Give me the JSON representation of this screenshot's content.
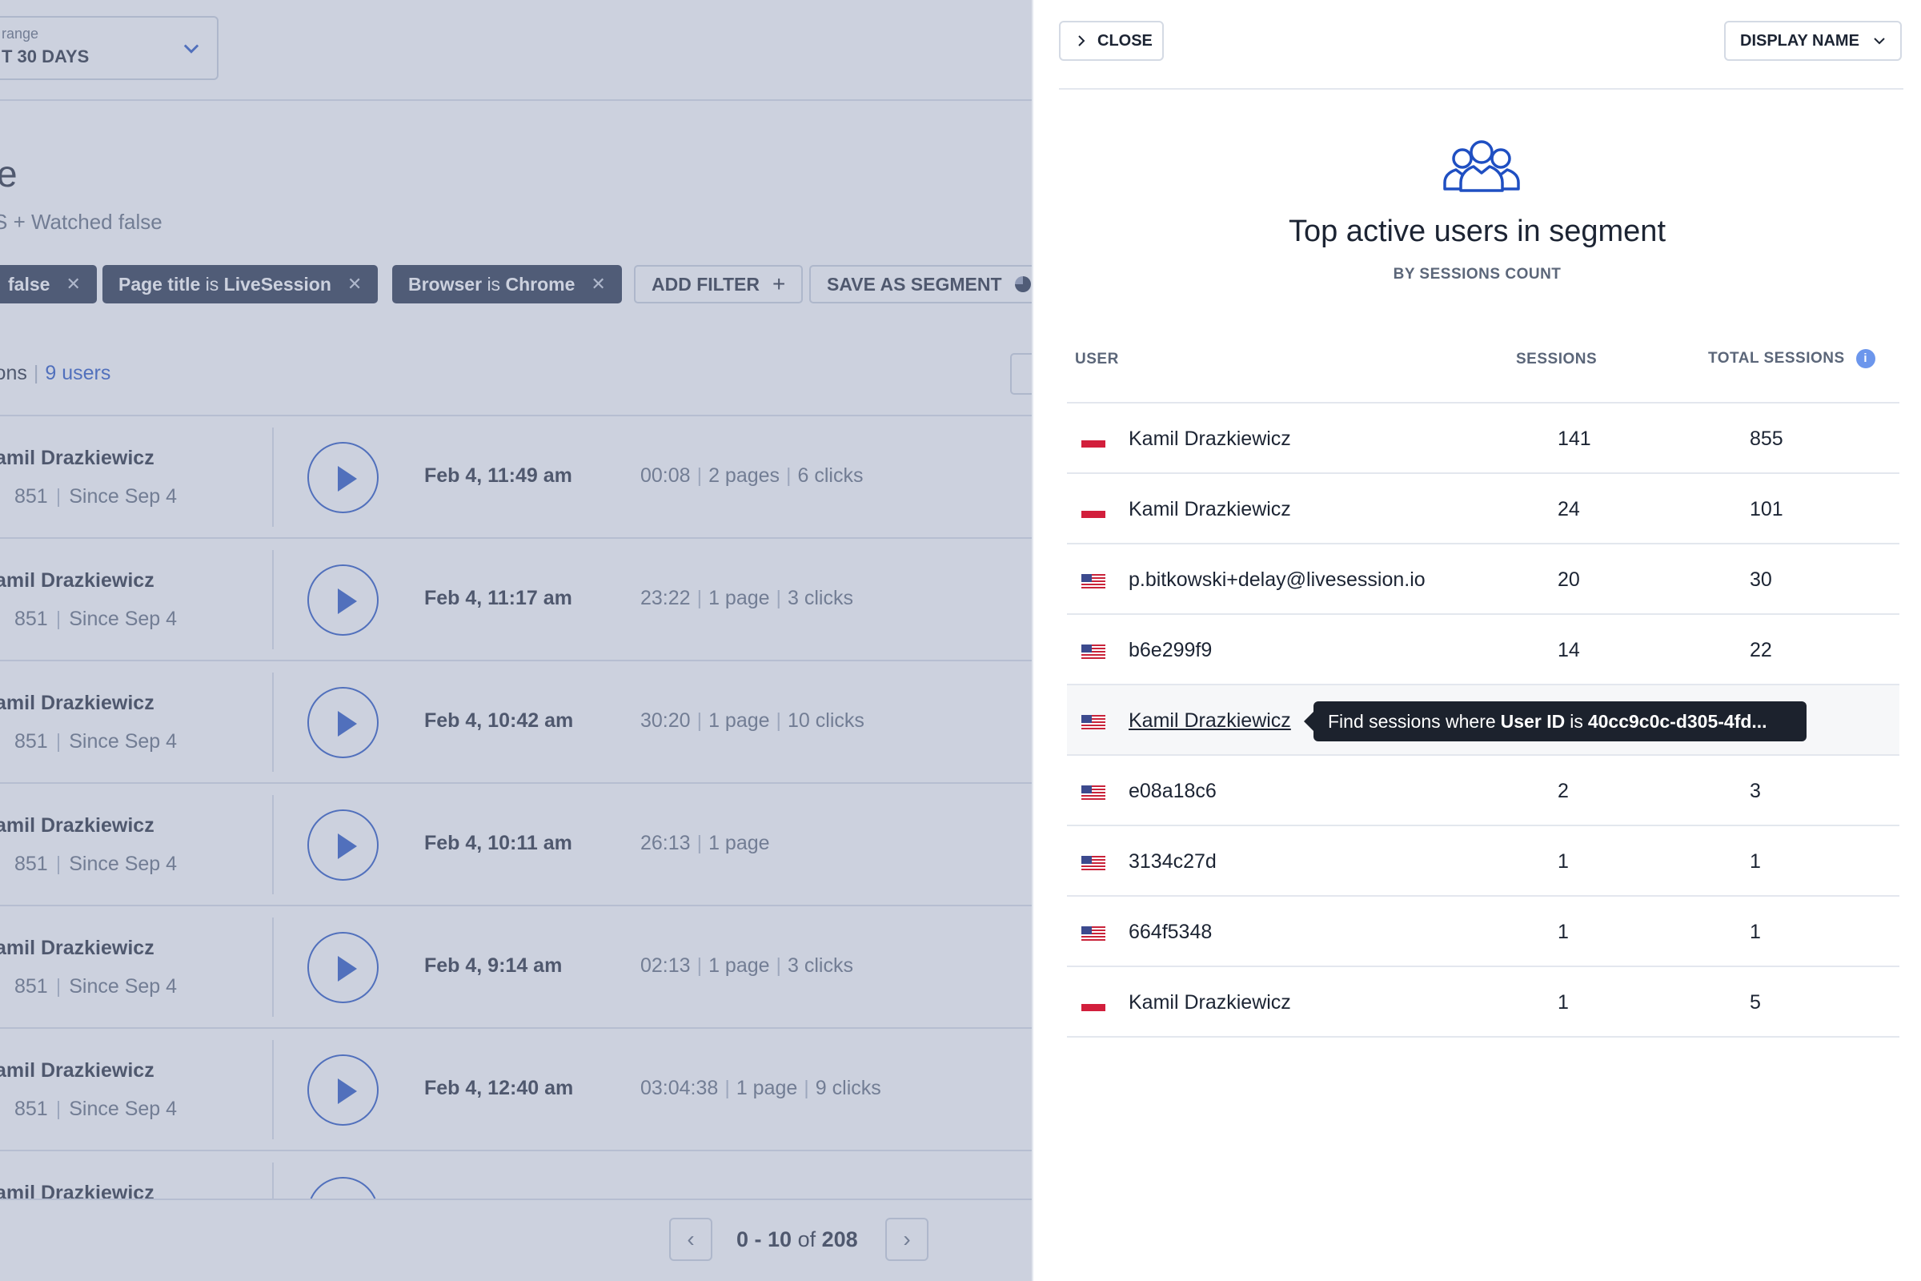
{
  "filters_bar": {
    "range_label": "range",
    "range_value": "T 30 DAYS"
  },
  "segment": {
    "title": "e",
    "subtitle": "S + Watched false"
  },
  "chips": [
    {
      "field": "false"
    },
    {
      "field": "Page title",
      "op": "is",
      "value": "LiveSession"
    },
    {
      "field": "Browser",
      "op": "is",
      "value": "Chrome"
    }
  ],
  "add_filter_label": "ADD FILTER",
  "save_segment_label": "SAVE AS SEGMENT",
  "counts": {
    "sessions_tail": "ions",
    "users": "9 users"
  },
  "sessions": [
    {
      "user": "amil Drazkiewicz",
      "count": "851",
      "since": "Since Sep 4",
      "date": "Feb 4, 11:49 am",
      "duration": "00:08",
      "pages": "2 pages",
      "clicks": "6 clicks"
    },
    {
      "user": "amil Drazkiewicz",
      "count": "851",
      "since": "Since Sep 4",
      "date": "Feb 4, 11:17 am",
      "duration": "23:22",
      "pages": "1 page",
      "clicks": "3 clicks"
    },
    {
      "user": "amil Drazkiewicz",
      "count": "851",
      "since": "Since Sep 4",
      "date": "Feb 4, 10:42 am",
      "duration": "30:20",
      "pages": "1 page",
      "clicks": "10 clicks"
    },
    {
      "user": "amil Drazkiewicz",
      "count": "851",
      "since": "Since Sep 4",
      "date": "Feb 4, 10:11 am",
      "duration": "26:13",
      "pages": "1 page",
      "clicks": ""
    },
    {
      "user": "amil Drazkiewicz",
      "count": "851",
      "since": "Since Sep 4",
      "date": "Feb 4, 9:14 am",
      "duration": "02:13",
      "pages": "1 page",
      "clicks": "3 clicks"
    },
    {
      "user": "amil Drazkiewicz",
      "count": "851",
      "since": "Since Sep 4",
      "date": "Feb 4, 12:40 am",
      "duration": "03:04:38",
      "pages": "1 page",
      "clicks": "9 clicks"
    },
    {
      "user": "amil Drazkiewicz",
      "count": "",
      "since": "",
      "date": "",
      "duration": "",
      "pages": "",
      "clicks": ""
    }
  ],
  "pagination": {
    "range": "0 - 10",
    "of_label": "of",
    "total": "208"
  },
  "panel": {
    "close_label": "CLOSE",
    "display_name_label": "DISPLAY NAME",
    "title": "Top active users in segment",
    "subtitle": "BY SESSIONS COUNT",
    "columns": {
      "user": "USER",
      "sessions": "SESSIONS",
      "total_sessions": "TOTAL SESSIONS"
    },
    "rows": [
      {
        "flag": "pl",
        "user": "Kamil Drazkiewicz",
        "sessions": "141",
        "total": "855"
      },
      {
        "flag": "pl",
        "user": "Kamil Drazkiewicz",
        "sessions": "24",
        "total": "101"
      },
      {
        "flag": "us",
        "user": "p.bitkowski+delay@livesession.io",
        "sessions": "20",
        "total": "30"
      },
      {
        "flag": "us",
        "user": "b6e299f9",
        "sessions": "14",
        "total": "22"
      },
      {
        "flag": "us",
        "user": "Kamil Drazkiewicz",
        "sessions": "",
        "total": ""
      },
      {
        "flag": "us",
        "user": "e08a18c6",
        "sessions": "2",
        "total": "3"
      },
      {
        "flag": "us",
        "user": "3134c27d",
        "sessions": "1",
        "total": "1"
      },
      {
        "flag": "us",
        "user": "664f5348",
        "sessions": "1",
        "total": "1"
      },
      {
        "flag": "pl",
        "user": "Kamil Drazkiewicz",
        "sessions": "1",
        "total": "5"
      }
    ],
    "tooltip": {
      "prefix": "Find sessions where",
      "field": "User ID",
      "op": "is",
      "value": "40cc9c0c-d305-4fd..."
    }
  },
  "colors": {
    "accent": "#1f4fc2",
    "chip_dark": "#1e2a44",
    "tooltip_bg": "#1c222d",
    "flag_red": "#d21f3c"
  }
}
